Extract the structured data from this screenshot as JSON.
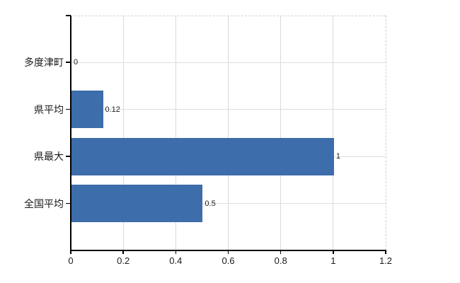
{
  "chart_data": {
    "type": "bar",
    "orientation": "horizontal",
    "title": "",
    "xlabel": "",
    "ylabel": "",
    "categories": [
      "多度津町",
      "県平均",
      "県最大",
      "全国平均"
    ],
    "values": [
      0,
      0.12,
      1,
      0.5
    ],
    "value_labels": [
      "0",
      "0.12",
      "1",
      "0.5"
    ],
    "xlim": [
      0,
      1.2
    ],
    "xticks": [
      0,
      0.2,
      0.4,
      0.6,
      0.8,
      1,
      1.2
    ],
    "xtick_labels": [
      "0",
      "0.2",
      "0.4",
      "0.6",
      "0.8",
      "1",
      "1.2"
    ],
    "grid": true,
    "legend": false,
    "colors": {
      "bar": "#3d6daa",
      "axis": "#000000",
      "hgrid": "#dbe2da",
      "vgrid": "#d9d9d9",
      "plot_border_dash": "#d8ccd4",
      "text": "#1a1a1a"
    }
  }
}
